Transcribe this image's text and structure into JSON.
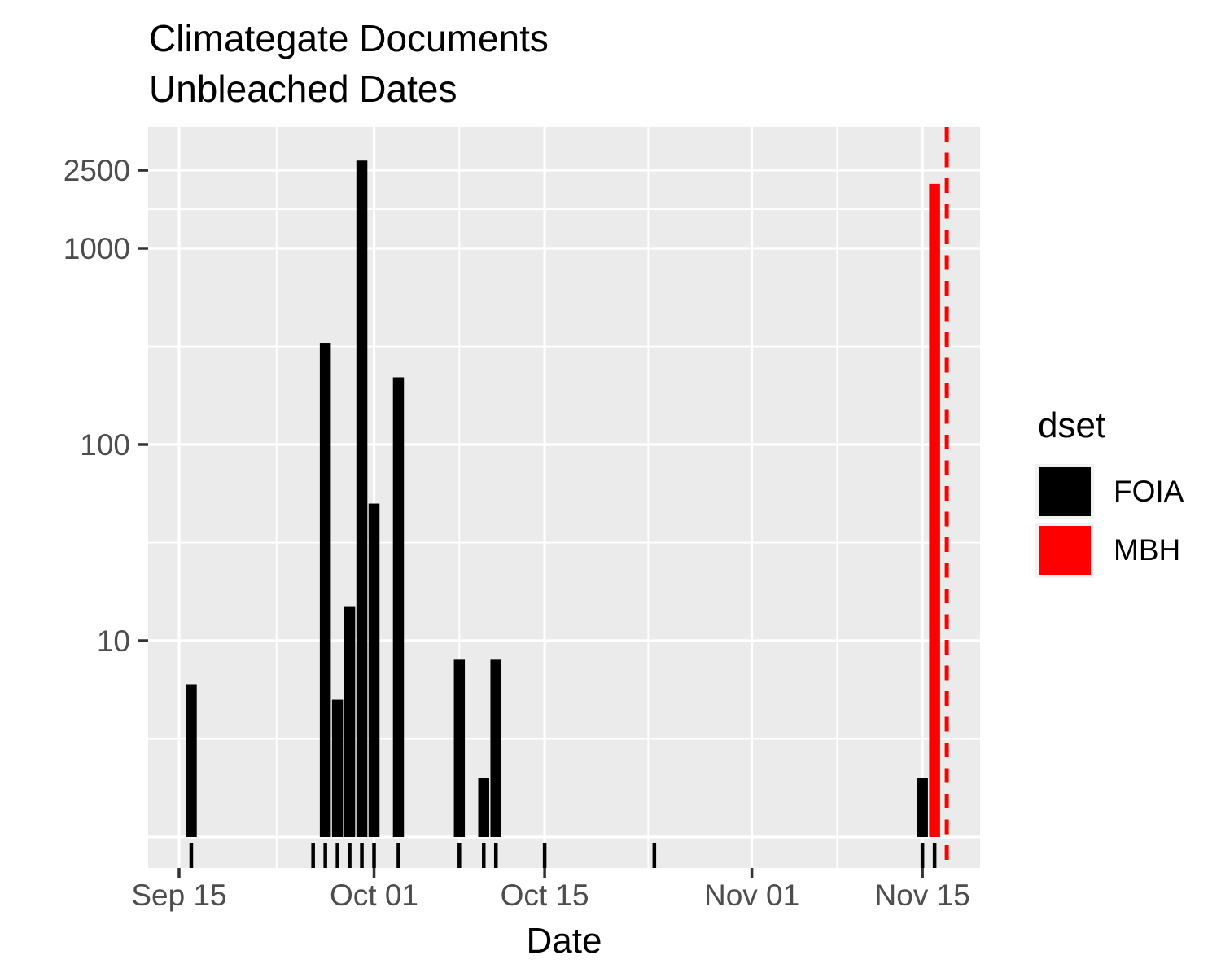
{
  "title": {
    "line1": "Climategate Documents",
    "line2": "Unbleached Dates"
  },
  "axes": {
    "x_title": "Date",
    "x_tick_labels": [
      "Sep 15",
      "Oct 01",
      "Oct 15",
      "Nov 01",
      "Nov 15"
    ],
    "y_tick_labels": [
      "2500",
      "1000",
      "100",
      "10"
    ]
  },
  "legend": {
    "title": "dset",
    "items": [
      {
        "label": "FOIA",
        "color": "#000000"
      },
      {
        "label": "MBH",
        "color": "#FF0000"
      }
    ]
  },
  "style": {
    "panel_bg": "#EBEBEB",
    "grid_color": "#FFFFFF",
    "tick_color": "#333333",
    "tick_label_color": "#4D4D4D",
    "legend_key_bg": "#F2F2F2",
    "foia_color": "#000000",
    "mbh_color": "#FF0000",
    "vline_color": "#FF0000"
  },
  "chart_data": {
    "type": "bar",
    "title": "Climategate Documents Unbleached Dates",
    "xlabel": "Date",
    "ylabel": "",
    "y_scale": "log10",
    "y_breaks": [
      10,
      100,
      1000,
      2500
    ],
    "y_minor_breaks": [
      3.16,
      31.6,
      316,
      1581
    ],
    "x_breaks": [
      "Sep 15",
      "Oct 01",
      "Oct 15",
      "Nov 01",
      "Nov 15"
    ],
    "bar_baseline": 1,
    "grid": true,
    "legend_position": "right",
    "series": [
      {
        "name": "FOIA",
        "color": "#000000",
        "points": [
          {
            "date": "Sep 16",
            "count": 6
          },
          {
            "date": "Sep 26",
            "count": 1
          },
          {
            "date": "Sep 27",
            "count": 330
          },
          {
            "date": "Sep 28",
            "count": 5
          },
          {
            "date": "Sep 29",
            "count": 15
          },
          {
            "date": "Sep 30",
            "count": 2800
          },
          {
            "date": "Oct 01",
            "count": 50
          },
          {
            "date": "Oct 03",
            "count": 220
          },
          {
            "date": "Oct 08",
            "count": 8
          },
          {
            "date": "Oct 10",
            "count": 2
          },
          {
            "date": "Oct 11",
            "count": 8
          },
          {
            "date": "Oct 15",
            "count": 1
          },
          {
            "date": "Oct 24",
            "count": 1
          },
          {
            "date": "Nov 15",
            "count": 2
          }
        ]
      },
      {
        "name": "MBH",
        "color": "#FF0000",
        "points": [
          {
            "date": "Nov 16",
            "count": 2130
          }
        ]
      }
    ],
    "rug_dates": [
      "Sep 16",
      "Sep 26",
      "Sep 27",
      "Sep 28",
      "Sep 29",
      "Sep 30",
      "Oct 01",
      "Oct 03",
      "Oct 08",
      "Oct 10",
      "Oct 11",
      "Oct 15",
      "Oct 24",
      "Nov 15",
      "Nov 16"
    ],
    "vline": {
      "date": "Nov 17",
      "color": "#FF0000",
      "style": "dashed"
    }
  }
}
